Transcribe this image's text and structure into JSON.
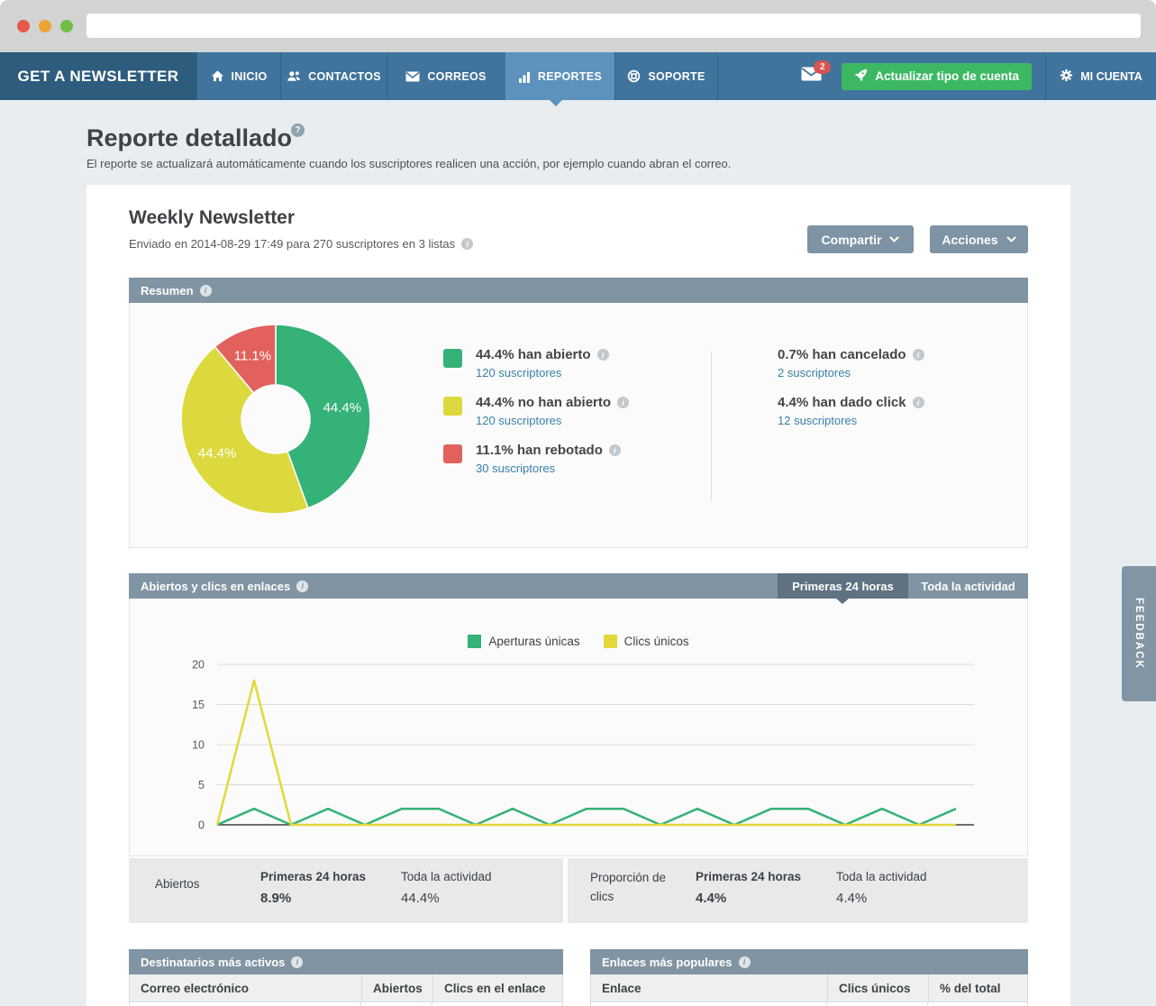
{
  "navbar": {
    "brand": "GET A NEWSLETTER",
    "items": [
      {
        "label": "INICIO"
      },
      {
        "label": "CONTACTOS"
      },
      {
        "label": "CORREOS"
      },
      {
        "label": "REPORTES"
      },
      {
        "label": "SOPORTE"
      }
    ],
    "mail_badge": "2",
    "upgrade_label": "Actualizar tipo de cuenta",
    "account_label": "MI CUENTA"
  },
  "page": {
    "title": "Reporte detallado",
    "help": "?",
    "subtitle": "El reporte se actualizará automáticamente cuando los suscriptores realicen una acción, por ejemplo cuando abran el correo."
  },
  "report": {
    "title": "Weekly Newsletter",
    "sent_info": "Enviado en 2014-08-29 17:49 para 270 suscriptores en 3 listas",
    "share_label": "Compartir",
    "actions_label": "Acciones"
  },
  "summary": {
    "header": "Resumen",
    "stats_left": [
      {
        "swatch": "#35b277",
        "label": "44.4% han abierto",
        "link": "120 suscriptores"
      },
      {
        "swatch": "#dcd93e",
        "label": "44.4% no han abierto",
        "link": "120 suscriptores"
      },
      {
        "swatch": "#e2615c",
        "label": "11.1% han rebotado",
        "link": "30 suscriptores"
      }
    ],
    "stats_right": [
      {
        "label": "0.7% han cancelado",
        "link": "2 suscriptores"
      },
      {
        "label": "4.4% han dado click",
        "link": "12 suscriptores"
      }
    ]
  },
  "activity": {
    "header": "Abiertos y clics en enlaces",
    "tabs": [
      {
        "label": "Primeras 24 horas",
        "active": true
      },
      {
        "label": "Toda la actividad",
        "active": false
      }
    ],
    "stats": {
      "left_label": "Abiertos",
      "left_first_title": "Primeras 24 horas",
      "left_first_value": "8.9%",
      "left_all_title": "Toda la actividad",
      "left_all_value": "44.4%",
      "right_label": "Proporción de clics",
      "right_first_title": "Primeras 24 horas",
      "right_first_value": "4.4%",
      "right_all_title": "Toda la actividad",
      "right_all_value": "4.4%"
    }
  },
  "tables": {
    "recipients": {
      "header": "Destinatarios más activos",
      "columns": [
        "Correo electrónico",
        "Abiertos",
        "Clics en el enlace"
      ]
    },
    "links": {
      "header": "Enlaces más populares",
      "columns": [
        "Enlace",
        "Clics únicos",
        "% del total"
      ]
    }
  },
  "feedback_label": "FEEDBACK",
  "colors": {
    "navbar": "#40749c",
    "navbar_dark": "#2d5c7d",
    "navbar_active": "#5c92bc",
    "panel_header": "#8094a3",
    "accent_green": "#3cb863",
    "badge_red": "#d9534f",
    "link_blue": "#3a80a8"
  },
  "chart_data": [
    {
      "type": "pie",
      "donut": true,
      "title": "Resumen",
      "labels": [
        "han abierto",
        "no han abierto",
        "han rebotado"
      ],
      "values": [
        44.4,
        44.4,
        11.1
      ],
      "percent_labels": [
        "44.4%",
        "44.4%",
        "11.1%"
      ],
      "colors": [
        "#35b277",
        "#dcd93e",
        "#e2615c"
      ],
      "subscribers": [
        120,
        120,
        30
      ],
      "legend_position": "right"
    },
    {
      "type": "line",
      "title": "Abiertos y clics en enlaces - Primeras 24 horas",
      "x": [
        0,
        1,
        2,
        3,
        4,
        5,
        6,
        7,
        8,
        9,
        10,
        11,
        12,
        13,
        14,
        15,
        16,
        17,
        18,
        19,
        20
      ],
      "series": [
        {
          "name": "Aperturas únicas",
          "color": "#35b277",
          "values": [
            0,
            2,
            0,
            2,
            0,
            2,
            2,
            0,
            2,
            0,
            2,
            2,
            0,
            2,
            0,
            2,
            2,
            0,
            2,
            0,
            2
          ]
        },
        {
          "name": "Clics únicos",
          "color": "#e3d83a",
          "values": [
            0,
            18,
            0,
            0,
            0,
            0,
            0,
            0,
            0,
            0,
            0,
            0,
            0,
            0,
            0,
            0,
            0,
            0,
            0,
            0,
            0
          ]
        }
      ],
      "ylim": [
        0,
        20
      ],
      "yticks": [
        0,
        5,
        10,
        15,
        20
      ],
      "grid": true,
      "legend_position": "top"
    }
  ]
}
